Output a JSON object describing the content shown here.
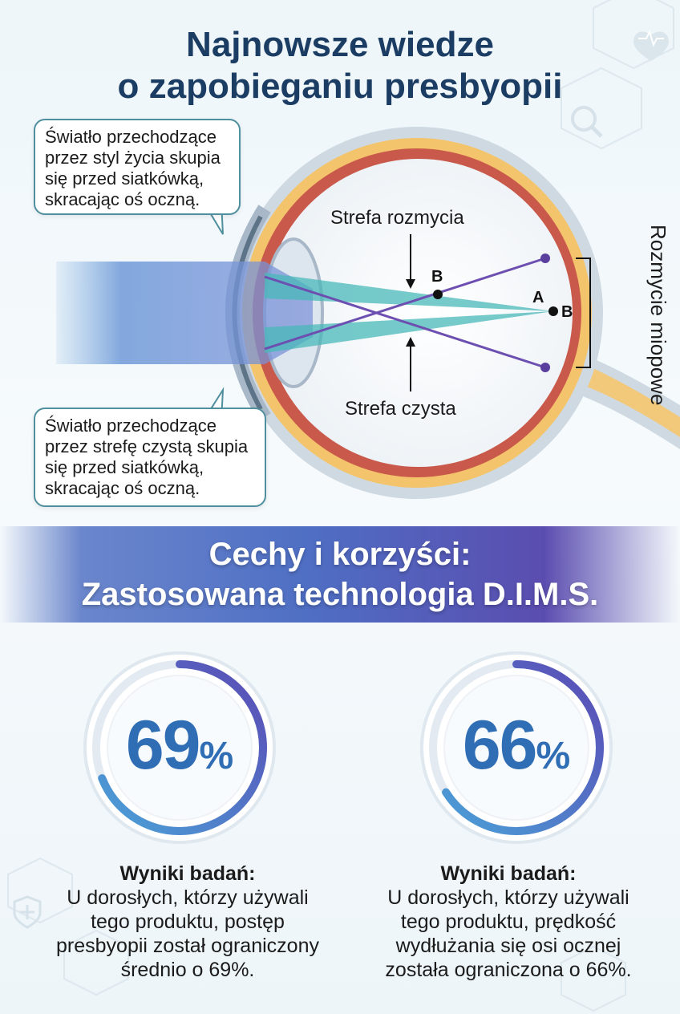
{
  "title": [
    "Najnowsze wiedze",
    "o zapobieganiu presbyopii"
  ],
  "callouts": {
    "top": [
      "Światło przechodzące",
      "przez styl życia skupia",
      "się przed siatkówką,",
      "skracając oś oczną."
    ],
    "bottom": [
      "Światło przechodzące",
      "przez strefę czystą skupia",
      "się przed siatkówką,",
      "skracając oś oczną."
    ]
  },
  "diagram": {
    "blur_zone": "Strefa rozmycia",
    "clear_zone": "Strefa czysta",
    "myopic_blur": "Rozmycie miopowe",
    "point_a": "A",
    "point_b": "B"
  },
  "banner": [
    "Cechy i korzyści:",
    "Zastosowana technologia D.I.M.S."
  ],
  "stats": [
    {
      "value": "69",
      "unit": "%",
      "fill_fraction": 0.69,
      "heading": "Wyniki badań:",
      "lines": [
        "U dorosłych, którzy używali",
        "tego produktu, postęp",
        "presbyopii został ograniczony",
        "średnio o 69%."
      ]
    },
    {
      "value": "66",
      "unit": "%",
      "fill_fraction": 0.66,
      "heading": "Wyniki badań:",
      "lines": [
        "U dorosłych, którzy używali",
        "tego produktu, prędkość",
        "wydłużania się osi ocznej",
        "została ograniczona o 66%."
      ]
    }
  ],
  "colors": {
    "title": "#1c3d63",
    "percent": "#2f6db4",
    "ring_start": "#4aa3d8",
    "ring_end": "#5b49b5",
    "banner": "#4f6fc4"
  },
  "icons": [
    "heart-monitor-icon",
    "magnifier-icon",
    "shield-cross-icon"
  ]
}
